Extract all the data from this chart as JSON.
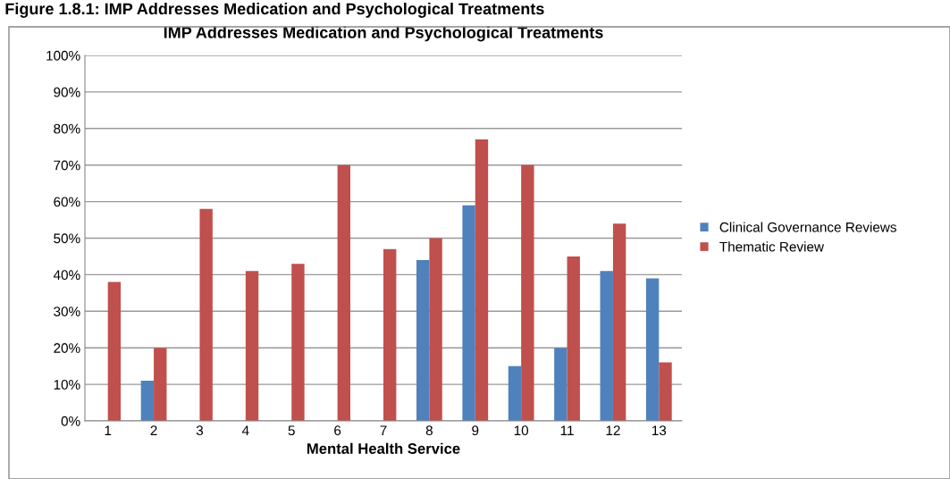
{
  "chart_data": {
    "type": "bar",
    "title": "IMP Addresses Medication and Psychological Treatments",
    "xlabel": "Mental Health Service",
    "annotations": [
      "Figure 1.8.1: IMP Addresses Medication and Psychological Treatments"
    ],
    "categories": [
      "1",
      "2",
      "3",
      "4",
      "5",
      "6",
      "7",
      "8",
      "9",
      "10",
      "11",
      "12",
      "13"
    ],
    "series": [
      {
        "name": "Clinical Governance Reviews",
        "color": "#4f81bd",
        "values": [
          null,
          11,
          null,
          null,
          null,
          null,
          null,
          44,
          59,
          15,
          20,
          41,
          39
        ]
      },
      {
        "name": "Thematic Review",
        "color": "#c0504d",
        "values": [
          38,
          20,
          58,
          41,
          43,
          70,
          47,
          50,
          77,
          70,
          45,
          54,
          16
        ]
      }
    ],
    "ylim": [
      0,
      100
    ],
    "yticks": [
      {
        "value": 0,
        "label": "0%"
      },
      {
        "value": 10,
        "label": "10%"
      },
      {
        "value": 20,
        "label": "20%"
      },
      {
        "value": 30,
        "label": "30%"
      },
      {
        "value": 40,
        "label": "40%"
      },
      {
        "value": 50,
        "label": "50%"
      },
      {
        "value": 60,
        "label": "60%"
      },
      {
        "value": 70,
        "label": "70%"
      },
      {
        "value": 80,
        "label": "80%"
      },
      {
        "value": 90,
        "label": "90%"
      },
      {
        "value": 100,
        "label": "100%"
      }
    ],
    "grid": "y",
    "legend": "right"
  }
}
